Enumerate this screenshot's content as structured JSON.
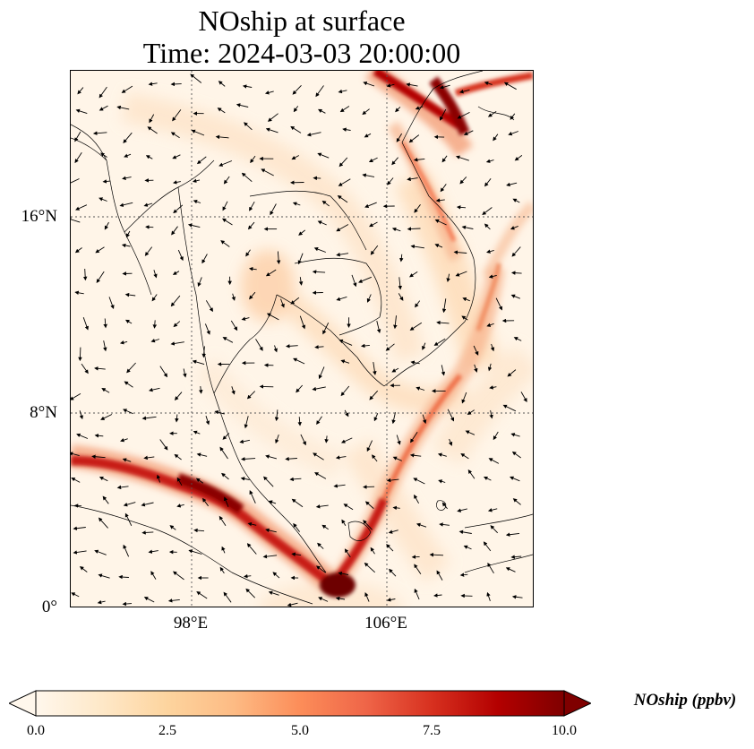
{
  "title": {
    "line1": "NOship at surface",
    "line2": "Time: 2024-03-03 20:00:00"
  },
  "map": {
    "projection": "PlateCarree",
    "lon_range": [
      93,
      112
    ],
    "lat_range": [
      0,
      22
    ],
    "gridlines": "dotted",
    "lat_labels": [
      "16°N",
      "8°N",
      "0°"
    ],
    "lon_labels": [
      "98°E",
      "106°E"
    ],
    "field_variable": "NOship",
    "field_units": "ppbv",
    "colormap": "OrRd",
    "overlay": "surface wind vectors (black arrows)"
  },
  "colorbar": {
    "label": "NOship (ppbv)",
    "ticks": [
      "0.0",
      "2.5",
      "5.0",
      "7.5",
      "10.0"
    ],
    "min": 0,
    "max": 10,
    "extend": "both",
    "colors": [
      "#fff7ec",
      "#fee8c8",
      "#fdd49e",
      "#fdbb84",
      "#fc8d59",
      "#ef6548",
      "#d7301f",
      "#b30000",
      "#7f0000"
    ]
  }
}
